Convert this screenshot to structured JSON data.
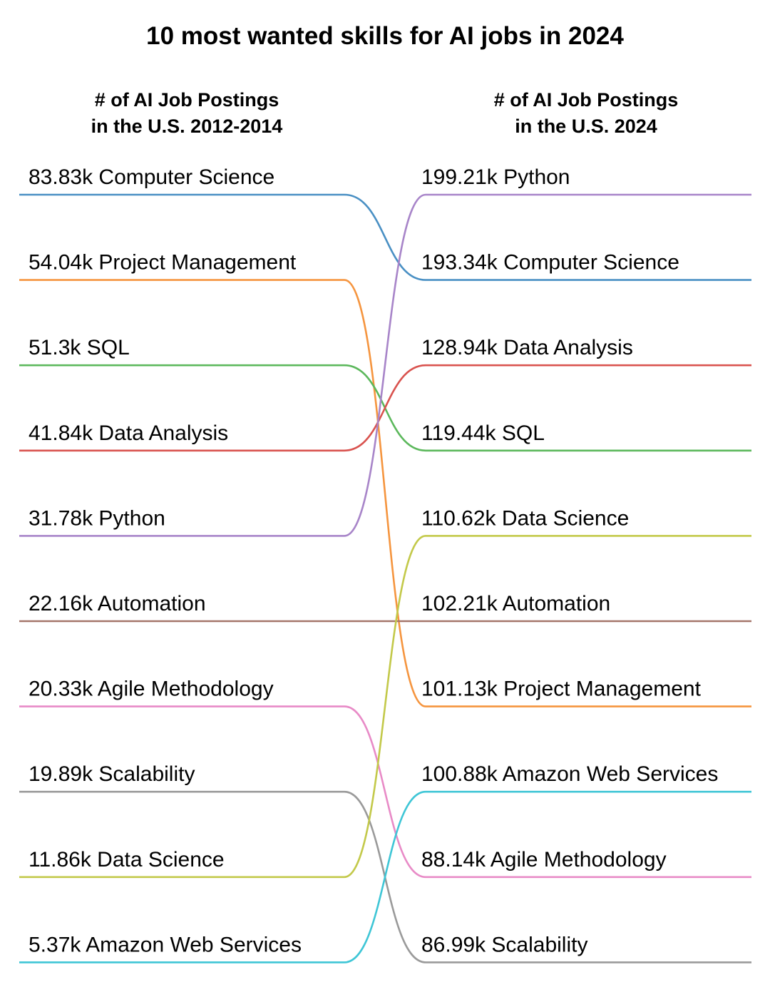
{
  "chart_data": {
    "type": "slope",
    "title": "10 most wanted skills for AI jobs in 2024",
    "left_header": [
      "# of AI Job Postings",
      "in the U.S. 2012-2014"
    ],
    "right_header": [
      "# of AI Job Postings",
      "in the U.S. 2024"
    ],
    "left": [
      {
        "value": "83.83k",
        "skill": "Computer Science"
      },
      {
        "value": "54.04k",
        "skill": "Project Management"
      },
      {
        "value": "51.3k",
        "skill": "SQL"
      },
      {
        "value": "41.84k",
        "skill": "Data Analysis"
      },
      {
        "value": "31.78k",
        "skill": "Python"
      },
      {
        "value": "22.16k",
        "skill": "Automation"
      },
      {
        "value": "20.33k",
        "skill": "Agile Methodology"
      },
      {
        "value": "19.89k",
        "skill": "Scalability"
      },
      {
        "value": "11.86k",
        "skill": "Data Science"
      },
      {
        "value": "5.37k",
        "skill": "Amazon Web Services"
      }
    ],
    "right": [
      {
        "value": "199.21k",
        "skill": "Python"
      },
      {
        "value": "193.34k",
        "skill": "Computer Science"
      },
      {
        "value": "128.94k",
        "skill": "Data Analysis"
      },
      {
        "value": "119.44k",
        "skill": "SQL"
      },
      {
        "value": "110.62k",
        "skill": "Data Science"
      },
      {
        "value": "102.21k",
        "skill": "Automation"
      },
      {
        "value": "101.13k",
        "skill": "Project Management"
      },
      {
        "value": "100.88k",
        "skill": "Amazon Web Services"
      },
      {
        "value": "88.14k",
        "skill": "Agile Methodology"
      },
      {
        "value": "86.99k",
        "skill": "Scalability"
      }
    ],
    "colors": {
      "Computer Science": "#4a90c4",
      "Project Management": "#f5953f",
      "SQL": "#5cb85c",
      "Data Analysis": "#d9534f",
      "Python": "#a885c9",
      "Automation": "#a5756a",
      "Agile Methodology": "#e88bc7",
      "Scalability": "#9a9a9a",
      "Data Science": "#c3c94a",
      "Amazon Web Services": "#3fc6d6"
    }
  }
}
